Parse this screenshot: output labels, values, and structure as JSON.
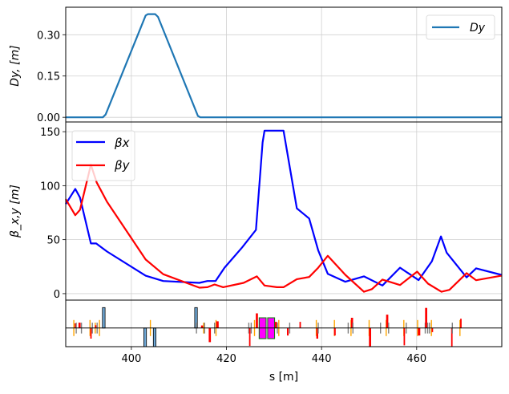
{
  "chart_data": [
    {
      "type": "line",
      "panel": "dispersion",
      "ylabel": "Dy, [m]",
      "xlim": [
        386.2,
        477.9
      ],
      "ylim": [
        -0.017,
        0.4
      ],
      "yticks": [
        0.0,
        0.15,
        0.3
      ],
      "ytick_labels": [
        "0.00",
        "0.15",
        "0.30"
      ],
      "xticks": [
        400,
        420,
        440,
        460
      ],
      "grid": true,
      "legend": {
        "placement": "top-right",
        "entries": [
          "Dy"
        ]
      },
      "series": [
        {
          "name": "Dy",
          "color": "#1f77b4",
          "x": [
            386.2,
            394.0,
            394.6,
            403.0,
            403.5,
            405.0,
            405.6,
            414.0,
            414.5,
            477.9
          ],
          "y": [
            0,
            0,
            0.01,
            0.37,
            0.375,
            0.375,
            0.365,
            0.005,
            0,
            0
          ]
        }
      ]
    },
    {
      "type": "line",
      "panel": "beta",
      "ylabel": "β_x,y [m]",
      "xlim": [
        386.2,
        477.9
      ],
      "ylim": [
        -6,
        159
      ],
      "yticks": [
        0,
        50,
        100,
        150
      ],
      "ytick_labels": [
        "0",
        "50",
        "100",
        "150"
      ],
      "xticks": [
        400,
        420,
        440,
        460
      ],
      "grid": true,
      "legend": {
        "placement": "top-left",
        "entries": [
          "βx",
          "βy"
        ]
      },
      "series": [
        {
          "name": "βx",
          "color": "#0000ff",
          "x": [
            386.2,
            388.2,
            389.2,
            391.5,
            392.6,
            394.9,
            403.0,
            406.7,
            414.3,
            416.0,
            417.7,
            419.6,
            423.3,
            426.2,
            427.6,
            428.0,
            432.0,
            434.8,
            437.4,
            439.3,
            441.3,
            445.0,
            448.9,
            452.8,
            456.5,
            460.4,
            463.2,
            465.1,
            466.3,
            470.5,
            472.5,
            477.8
          ],
          "y": [
            83,
            97,
            89,
            46.5,
            46.5,
            39,
            16.6,
            11.7,
            10,
            11.7,
            11.7,
            24,
            42.8,
            59,
            140,
            151,
            151,
            79,
            69.6,
            40,
            18.4,
            11,
            16,
            7.5,
            24,
            12.5,
            30,
            53,
            38,
            15,
            23.4,
            17.4
          ]
        },
        {
          "name": "βy",
          "color": "#ff0000",
          "x": [
            386.2,
            388.2,
            389.2,
            391.5,
            392.7,
            394.9,
            403.0,
            406.7,
            414.3,
            416.0,
            417.5,
            419.3,
            423.6,
            426.4,
            428.0,
            430.6,
            432.0,
            434.8,
            437.4,
            439.3,
            441.3,
            445.0,
            448.9,
            450.6,
            452.8,
            456.5,
            460.1,
            462.4,
            465.2,
            466.9,
            470.5,
            472.5,
            477.8
          ],
          "y": [
            87.5,
            72.6,
            77.6,
            119.4,
            103,
            85,
            31.6,
            18,
            5.5,
            6,
            8.5,
            6,
            10,
            16,
            7.5,
            6,
            6,
            13.4,
            15.4,
            24,
            35,
            17.4,
            1.7,
            4.2,
            13,
            8,
            20.4,
            9.2,
            1.7,
            3.5,
            19,
            12.4,
            16.6
          ]
        }
      ]
    },
    {
      "type": "bar",
      "panel": "lattice",
      "xlabel": "s [m]",
      "xlim": [
        386.2,
        477.9
      ],
      "ylim": [
        -1,
        1.5
      ],
      "xticks": [
        400,
        420,
        440,
        460
      ],
      "xtick_labels": [
        "400",
        "420",
        "440",
        "460"
      ],
      "grid": true,
      "colors": {
        "quad": "#ff0000",
        "sext": "#ffa500",
        "monitor": "#808080",
        "kicker": "#6fa8d6",
        "bend": "#ff00ff"
      },
      "element_fields": [
        "kind",
        "s",
        "length",
        "y_low",
        "y_high"
      ],
      "elements": [
        [
          "sext",
          387.9,
          0.1,
          -0.43,
          0.43
        ],
        [
          "quad",
          388.2,
          0.3,
          0,
          0.25
        ],
        [
          "monitor",
          388.4,
          0.1,
          -0.29,
          0.29
        ],
        [
          "quad",
          389.1,
          0.45,
          0,
          0.29
        ],
        [
          "monitor",
          389.5,
          0.1,
          -0.29,
          0.29
        ],
        [
          "sext",
          391.3,
          0.1,
          -0.43,
          0.43
        ],
        [
          "quad",
          391.5,
          0.3,
          -0.57,
          0
        ],
        [
          "monitor",
          391.8,
          0.1,
          -0.29,
          0.29
        ],
        [
          "sext",
          392.4,
          0.1,
          -0.29,
          0.29
        ],
        [
          "quad",
          392.5,
          0.3,
          0,
          0.15
        ],
        [
          "monitor",
          392.8,
          0.1,
          -0.29,
          0.29
        ],
        [
          "sext",
          393.3,
          0.1,
          -0.43,
          0.43
        ],
        [
          "kicker",
          394.2,
          0.56,
          0,
          1.1
        ],
        [
          "kicker",
          402.9,
          0.56,
          -1.0,
          0
        ],
        [
          "sext",
          404.0,
          0.1,
          -0.43,
          0.43
        ],
        [
          "kicker",
          404.9,
          0.56,
          -1.0,
          0
        ],
        [
          "kicker",
          413.6,
          0.56,
          0,
          1.1
        ],
        [
          "monitor",
          413.7,
          0.1,
          -0.29,
          0.29
        ],
        [
          "quad",
          414.9,
          0.5,
          0,
          0.14
        ],
        [
          "sext",
          415.2,
          0.1,
          -0.29,
          0.29
        ],
        [
          "monitor",
          415.4,
          0.1,
          -0.29,
          0.29
        ],
        [
          "quad",
          416.5,
          0.45,
          -0.76,
          0
        ],
        [
          "monitor",
          417.5,
          0.1,
          -0.29,
          0.29
        ],
        [
          "sext",
          417.8,
          0.1,
          -0.43,
          0.43
        ],
        [
          "quad",
          418.1,
          0.5,
          0,
          0.36
        ],
        [
          "monitor",
          424.7,
          0.1,
          -0.29,
          0.29
        ],
        [
          "quad",
          424.9,
          0.3,
          -0.96,
          0
        ],
        [
          "monitor",
          425.2,
          0.1,
          -0.29,
          0.29
        ],
        [
          "sext",
          425.9,
          0.1,
          -0.43,
          0.43
        ],
        [
          "quad",
          426.4,
          0.45,
          0,
          0.79
        ],
        [
          "bend",
          427.6,
          1.46,
          -0.57,
          0.55
        ],
        [
          "bend",
          429.4,
          1.46,
          -0.57,
          0.55
        ],
        [
          "quad",
          430.4,
          0.45,
          0,
          0.33
        ],
        [
          "monitor",
          430.7,
          0.1,
          -0.29,
          0.29
        ],
        [
          "sext",
          431.0,
          0.1,
          -0.43,
          0.43
        ],
        [
          "quad",
          432.9,
          0.35,
          -0.4,
          0
        ],
        [
          "monitor",
          433.3,
          0.1,
          -0.29,
          0.29
        ],
        [
          "quad",
          435.5,
          0.3,
          0,
          0.33
        ],
        [
          "sext",
          438.9,
          0.1,
          -0.43,
          0.43
        ],
        [
          "quad",
          439.1,
          0.4,
          -0.57,
          0
        ],
        [
          "monitor",
          439.3,
          0.1,
          -0.29,
          0.29
        ],
        [
          "sext",
          442.7,
          0.1,
          -0.43,
          0.43
        ],
        [
          "quad",
          442.8,
          0.35,
          -0.4,
          0
        ],
        [
          "monitor",
          445.6,
          0.1,
          -0.29,
          0.29
        ],
        [
          "sext",
          446.2,
          0.1,
          -0.43,
          0.43
        ],
        [
          "quad",
          446.4,
          0.45,
          0,
          0.55
        ],
        [
          "monitor",
          446.6,
          0.1,
          -0.29,
          0.29
        ],
        [
          "sext",
          450.0,
          0.1,
          -0.43,
          0.43
        ],
        [
          "quad",
          450.2,
          0.45,
          -1.0,
          0
        ],
        [
          "monitor",
          452.4,
          0.1,
          -0.29,
          0.29
        ],
        [
          "sext",
          453.6,
          0.1,
          -0.43,
          0.43
        ],
        [
          "quad",
          453.8,
          0.45,
          0,
          0.72
        ],
        [
          "monitor",
          454.1,
          0.1,
          -0.29,
          0.29
        ],
        [
          "sext",
          457.3,
          0.1,
          -0.43,
          0.43
        ],
        [
          "quad",
          457.4,
          0.3,
          -0.93,
          0
        ],
        [
          "monitor",
          457.8,
          0.1,
          -0.29,
          0.29
        ],
        [
          "sext",
          460.2,
          0.1,
          -0.43,
          0.43
        ],
        [
          "quad",
          460.5,
          0.5,
          -0.4,
          0
        ],
        [
          "monitor",
          461.8,
          0.1,
          -0.29,
          0.29
        ],
        [
          "quad",
          462.0,
          0.45,
          0,
          1.08
        ],
        [
          "monitor",
          462.3,
          0.1,
          -0.29,
          0.29
        ],
        [
          "monitor",
          462.7,
          0.1,
          -0.29,
          0.29
        ],
        [
          "sext",
          463.1,
          0.1,
          -0.43,
          0.43
        ],
        [
          "quad",
          463.3,
          0.3,
          -0.22,
          0
        ],
        [
          "quad",
          467.4,
          0.3,
          -1.0,
          0
        ],
        [
          "monitor",
          467.5,
          0.1,
          -0.29,
          0.29
        ],
        [
          "sext",
          469.1,
          0.1,
          -0.43,
          0.43
        ],
        [
          "quad",
          469.3,
          0.3,
          0,
          0.5
        ]
      ]
    }
  ]
}
